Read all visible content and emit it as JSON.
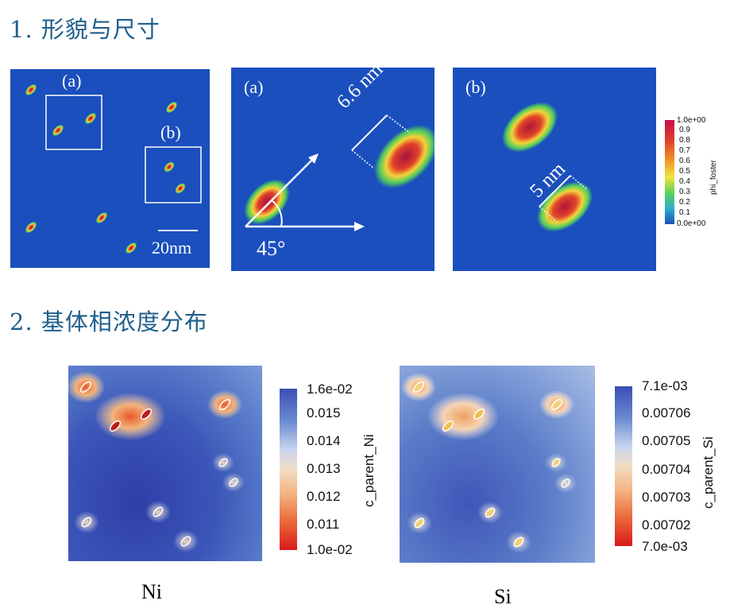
{
  "section1": {
    "title": "1. 形貌与尺寸"
  },
  "panel_overview": {
    "box_a_label": "(a)",
    "box_b_label": "(b)",
    "scale_bar": "20nm"
  },
  "panel_a": {
    "label": "(a)",
    "length": "6.6 nm",
    "angle": "45°"
  },
  "panel_b": {
    "label": "(b)",
    "distance": "5 nm"
  },
  "colorbar_phi": {
    "max": "1.0e+00",
    "ticks": [
      "0.9",
      "0.8",
      "0.7",
      "0.6",
      "0.5",
      "0.4",
      "0.3",
      "0.2",
      "0.1"
    ],
    "min": "0.0e+00",
    "title": "phi_foster"
  },
  "section2": {
    "title": "2. 基体相浓度分布"
  },
  "colorbar_ni": {
    "max": "1.6e-02",
    "ticks": [
      "0.015",
      "0.014",
      "0.013",
      "0.012",
      "0.011"
    ],
    "min": "1.0e-02",
    "title": "c_parent_Ni"
  },
  "colorbar_si": {
    "max": "7.1e-03",
    "ticks": [
      "0.00706",
      "0.00705",
      "0.00704",
      "0.00703",
      "0.00702"
    ],
    "min": "7.0e-03",
    "title": "c_parent_Si"
  },
  "captions": {
    "ni": "Ni",
    "si": "Si"
  }
}
